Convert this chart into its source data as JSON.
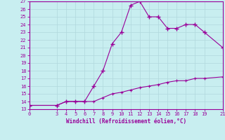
{
  "xlabel": "Windchill (Refroidissement éolien,°C)",
  "background_color": "#c8eef0",
  "grid_color": "#b0d8dc",
  "line_color": "#990099",
  "x_main": [
    0,
    3,
    4,
    5,
    6,
    7,
    8,
    9,
    10,
    11,
    12,
    13,
    14,
    15,
    16,
    17,
    18,
    19,
    21
  ],
  "y_main": [
    13.5,
    13.5,
    14.0,
    14.0,
    14.0,
    16.0,
    18.0,
    21.5,
    23.0,
    26.5,
    27.0,
    25.0,
    25.0,
    23.5,
    23.5,
    24.0,
    24.0,
    23.0,
    21.0
  ],
  "x_lower": [
    0,
    3,
    4,
    5,
    6,
    7,
    8,
    9,
    10,
    11,
    12,
    13,
    14,
    15,
    16,
    17,
    18,
    19,
    21
  ],
  "y_lower": [
    13.5,
    13.5,
    14.0,
    14.0,
    14.0,
    14.0,
    14.5,
    15.0,
    15.2,
    15.5,
    15.8,
    16.0,
    16.2,
    16.5,
    16.7,
    16.7,
    17.0,
    17.0,
    17.2
  ],
  "xlim": [
    0,
    21
  ],
  "ylim": [
    13,
    27
  ],
  "yticks": [
    13,
    14,
    15,
    16,
    17,
    18,
    19,
    20,
    21,
    22,
    23,
    24,
    25,
    26,
    27
  ],
  "xticks": [
    0,
    3,
    4,
    5,
    6,
    7,
    8,
    9,
    10,
    11,
    12,
    13,
    14,
    15,
    16,
    17,
    18,
    19,
    21
  ]
}
